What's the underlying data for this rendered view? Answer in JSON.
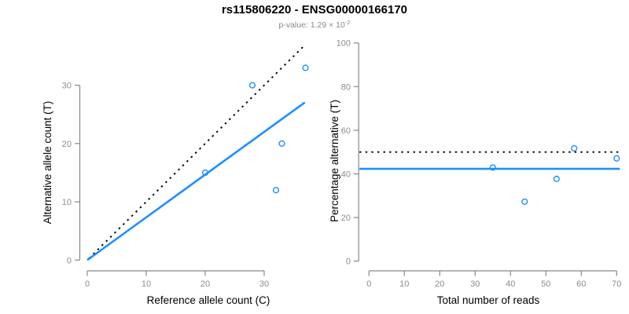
{
  "figure": {
    "title": "rs115806220 - ENSG00000166170",
    "subtitle_prefix": "p-value: 1.29 × 10",
    "subtitle_exponent": "-2"
  },
  "colors": {
    "accent_blue": "#1E90FF",
    "line_black": "#000000",
    "axis_gray": "#888888",
    "tick_label_gray": "#8C8C8C",
    "axis_title_black": "#000000"
  },
  "chart_data": [
    {
      "type": "scatter",
      "name": "allele-counts",
      "xlabel": "Reference allele count (C)",
      "ylabel": "Alternative allele count (T)",
      "xticks": [
        0,
        10,
        20,
        30
      ],
      "yticks": [
        0,
        10,
        20,
        30
      ],
      "xlim": [
        0,
        37
      ],
      "ylim": [
        0,
        37
      ],
      "grid": false,
      "points": [
        [
          20,
          15
        ],
        [
          28,
          30
        ],
        [
          32,
          12
        ],
        [
          33,
          20
        ],
        [
          37,
          33
        ]
      ],
      "lines": [
        {
          "name": "identity-expected-line",
          "style": "dotted",
          "color_key": "line_black",
          "from": [
            0.3,
            0.3
          ],
          "to": [
            36.85,
            36.85
          ]
        },
        {
          "name": "fitted-line",
          "style": "solid",
          "color_key": "accent_blue",
          "from": [
            0,
            0
          ],
          "to": [
            36.9,
            27.06
          ]
        }
      ]
    },
    {
      "type": "scatter",
      "name": "percentage-alternative",
      "xlabel": "Total number of reads",
      "ylabel": "Percentage alternative (T)",
      "xticks": [
        0,
        10,
        20,
        30,
        40,
        50,
        60,
        70
      ],
      "yticks": [
        0,
        20,
        40,
        60,
        80,
        100
      ],
      "xlim": [
        0,
        70.9
      ],
      "ylim": [
        0,
        100
      ],
      "grid": false,
      "points": [
        [
          35,
          42.9
        ],
        [
          44,
          27.3
        ],
        [
          53,
          37.7
        ],
        [
          58,
          51.7
        ],
        [
          70,
          47.1
        ]
      ],
      "lines": [
        {
          "name": "expected-50-percent-line",
          "style": "dotted",
          "color_key": "line_black",
          "from": [
            -2.7,
            50
          ],
          "to": [
            70.9,
            50
          ]
        },
        {
          "name": "fitted-percentage-line",
          "style": "solid",
          "color_key": "accent_blue",
          "from": [
            -2.7,
            42.3
          ],
          "to": [
            70.9,
            42.3
          ]
        }
      ]
    }
  ]
}
